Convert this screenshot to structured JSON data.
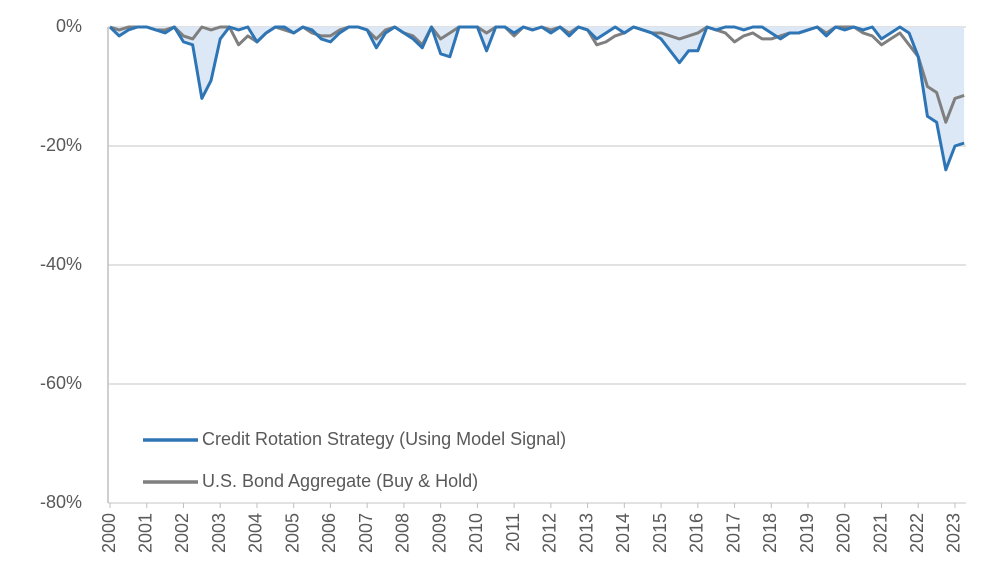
{
  "chart_data": {
    "type": "line",
    "x": [
      2000,
      2000.25,
      2000.5,
      2000.75,
      2001,
      2001.25,
      2001.5,
      2001.75,
      2002,
      2002.25,
      2002.5,
      2002.75,
      2003,
      2003.25,
      2003.5,
      2003.75,
      2004,
      2004.25,
      2004.5,
      2004.75,
      2005,
      2005.25,
      2005.5,
      2005.75,
      2006,
      2006.25,
      2006.5,
      2006.75,
      2007,
      2007.25,
      2007.5,
      2007.75,
      2008,
      2008.25,
      2008.5,
      2008.75,
      2009,
      2009.25,
      2009.5,
      2009.75,
      2010,
      2010.25,
      2010.5,
      2010.75,
      2011,
      2011.25,
      2011.5,
      2011.75,
      2012,
      2012.25,
      2012.5,
      2012.75,
      2013,
      2013.25,
      2013.5,
      2013.75,
      2014,
      2014.25,
      2014.5,
      2014.75,
      2015,
      2015.25,
      2015.5,
      2015.75,
      2016,
      2016.25,
      2016.5,
      2016.75,
      2017,
      2017.25,
      2017.5,
      2017.75,
      2018,
      2018.25,
      2018.5,
      2018.75,
      2019,
      2019.25,
      2019.5,
      2019.75,
      2020,
      2020.25,
      2020.5,
      2020.75,
      2021,
      2021.25,
      2021.5,
      2021.75,
      2022,
      2022.25,
      2022.5,
      2022.75,
      2023,
      2023.25
    ],
    "series": [
      {
        "name": "Credit Rotation Strategy (Using Model Signal)",
        "color": "#2e75b6",
        "values": [
          0,
          -1.5,
          -0.5,
          0,
          0,
          -0.5,
          -1,
          0,
          -2.5,
          -3,
          -12,
          -9,
          -2,
          0,
          -0.5,
          0,
          -2.5,
          -1,
          0,
          0,
          -1,
          0,
          -0.5,
          -2,
          -2.5,
          -1,
          0,
          0,
          -0.5,
          -3.5,
          -1,
          0,
          -1,
          -2,
          -3.5,
          0,
          -4.5,
          -5,
          0,
          0,
          0,
          -4,
          0,
          0,
          -1,
          0,
          -0.5,
          0,
          -1,
          0,
          -1.5,
          0,
          -0.5,
          -2,
          -1,
          0,
          -1,
          0,
          -0.5,
          -1,
          -2,
          -4,
          -6,
          -4,
          -4,
          0,
          -0.5,
          0,
          0,
          -0.5,
          0,
          0,
          -1,
          -2,
          -1,
          -1,
          -0.5,
          0,
          -1.5,
          0,
          -0.5,
          0,
          -0.5,
          0,
          -2,
          -1,
          0,
          -1,
          -5,
          -15,
          -16,
          -24,
          -20,
          -19.5
        ]
      },
      {
        "name": "U.S. Bond Aggregate (Buy & Hold)",
        "color": "#7f7f7f",
        "values": [
          0,
          -0.5,
          0,
          0,
          0,
          -0.5,
          -0.5,
          0,
          -1.5,
          -2,
          0,
          -0.5,
          0,
          0,
          -3,
          -1.5,
          -2.5,
          -1,
          0,
          -0.5,
          -1,
          0,
          -1,
          -1.5,
          -1.5,
          -0.5,
          0,
          0,
          -0.5,
          -2,
          -0.5,
          0,
          -1,
          -1.5,
          -3,
          0,
          -2,
          -1,
          0,
          0,
          0,
          -1,
          0,
          0,
          -1.5,
          0,
          -0.5,
          0,
          -0.5,
          0,
          -1,
          0,
          -0.5,
          -3,
          -2.5,
          -1.5,
          -1,
          0,
          -0.5,
          -1,
          -1,
          -1.5,
          -2,
          -1.5,
          -1,
          0,
          -0.5,
          -1,
          -2.5,
          -1.5,
          -1,
          -2,
          -2,
          -1.5,
          -1,
          -1,
          -0.5,
          0,
          -1,
          0,
          0,
          0,
          -1,
          -1.5,
          -3,
          -2,
          -1,
          -3,
          -5,
          -10,
          -11,
          -16,
          -12,
          -11.5
        ]
      }
    ],
    "xlim": [
      2000,
      2023.3
    ],
    "xticks": [
      2000,
      2001,
      2002,
      2003,
      2004,
      2005,
      2006,
      2007,
      2008,
      2009,
      2010,
      2011,
      2012,
      2013,
      2014,
      2015,
      2016,
      2017,
      2018,
      2019,
      2020,
      2021,
      2022,
      2023
    ],
    "ylim": [
      -80,
      0
    ],
    "yticks": [
      {
        "value": 0,
        "label": "0%"
      },
      {
        "value": -20,
        "label": "-20%"
      },
      {
        "value": -40,
        "label": "-40%"
      },
      {
        "value": -60,
        "label": "-60%"
      },
      {
        "value": -80,
        "label": "-80%"
      }
    ],
    "grid": true,
    "legend": "lower left"
  }
}
